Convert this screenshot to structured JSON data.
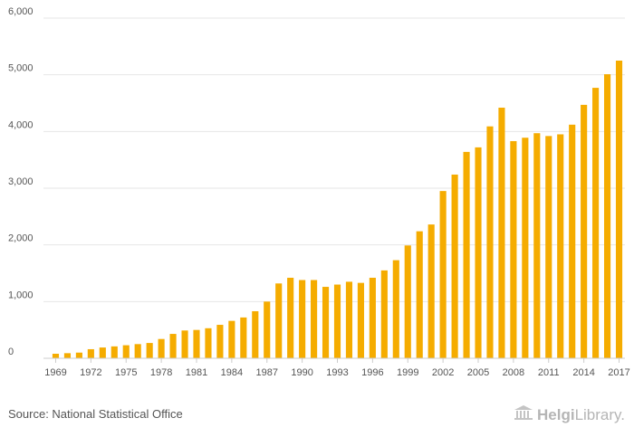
{
  "chart_data": {
    "type": "bar",
    "categories": [
      "1969",
      "1970",
      "1971",
      "1972",
      "1973",
      "1974",
      "1975",
      "1976",
      "1977",
      "1978",
      "1979",
      "1980",
      "1981",
      "1982",
      "1983",
      "1984",
      "1985",
      "1986",
      "1987",
      "1988",
      "1989",
      "1990",
      "1991",
      "1992",
      "1993",
      "1994",
      "1995",
      "1996",
      "1997",
      "1998",
      "1999",
      "2000",
      "2001",
      "2002",
      "2003",
      "2004",
      "2005",
      "2006",
      "2007",
      "2008",
      "2009",
      "2010",
      "2011",
      "2012",
      "2013",
      "2014",
      "2015",
      "2016",
      "2017"
    ],
    "values": [
      80,
      90,
      100,
      160,
      190,
      210,
      230,
      250,
      270,
      340,
      430,
      490,
      500,
      530,
      590,
      660,
      720,
      830,
      1000,
      1320,
      1420,
      1380,
      1380,
      1260,
      1300,
      1350,
      1330,
      1420,
      1550,
      1730,
      1990,
      2240,
      2360,
      2950,
      3240,
      3640,
      3720,
      4090,
      4420,
      3830,
      3890,
      3970,
      3920,
      3950,
      4120,
      4470,
      4770,
      5010,
      5250
    ],
    "x_tick_labels": [
      "1969",
      "1972",
      "1975",
      "1978",
      "1981",
      "1984",
      "1987",
      "1990",
      "1993",
      "1996",
      "1999",
      "2002",
      "2005",
      "2008",
      "2011",
      "2014",
      "2017"
    ],
    "y_tick_labels": [
      "0",
      "1,000",
      "2,000",
      "3,000",
      "4,000",
      "5,000",
      "6,000"
    ],
    "ylim": [
      0,
      6000
    ],
    "grid": true,
    "bar_color": "#f5ac00",
    "title": "",
    "xlabel": "",
    "ylabel": ""
  },
  "footer": {
    "source": "Source: National Statistical Office",
    "brand_icon": "library-building-icon",
    "brand_strong": "Helgi",
    "brand_light": "Library."
  }
}
